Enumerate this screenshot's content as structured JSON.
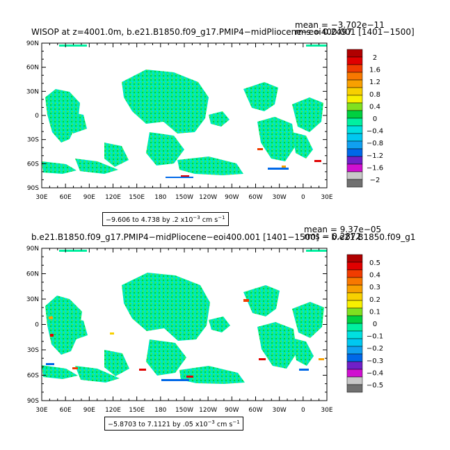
{
  "panels": [
    {
      "title_left": "WISOP  at z=4001.0m,  b.e21.B1850.f09_g17.PMIP4−midPliocene−eoi400.001  [1401−1500]",
      "stat_mean": "mean = −3.702e−11",
      "stat_rms": "rms = 0.2497",
      "range_label": "−9.606 to 4.738 by .2 x10",
      "range_exp": "−3",
      "range_unit": " cm s",
      "range_unit_exp": "−1",
      "colorbar_labels": [
        "2",
        "1.6",
        "1.2",
        "0.8",
        "0.4",
        "0",
        "−0.4",
        "−0.8",
        "−1.2",
        "−1.6",
        "−2"
      ],
      "colorbar_colors": [
        "#b00000",
        "#e00000",
        "#f03c00",
        "#f87800",
        "#f8a000",
        "#f8d000",
        "#f8f000",
        "#80e020",
        "#00d040",
        "#00f0a0",
        "#00e0e0",
        "#00c8f0",
        "#10a0f0",
        "#0068e8",
        "#7020c8",
        "#d010d0",
        "#c8c8c8",
        "#707070"
      ]
    },
    {
      "title_left": "b.e21.B1850.f09_g17.PMIP4−midPliocene−eoi400.001  [1401−1500]  −  b.e21.B1850.f09_g1",
      "stat_mean": "mean = 9.37e−05",
      "stat_rms": "rms = 0.2872",
      "range_label": "−5.8703 to 7.1121 by .05 x10",
      "range_exp": "−3",
      "range_unit": " cm s",
      "range_unit_exp": "−1",
      "colorbar_labels": [
        "0.5",
        "0.4",
        "0.3",
        "0.2",
        "0.1",
        "0",
        "−0.1",
        "−0.2",
        "−0.3",
        "−0.4",
        "−0.5"
      ],
      "colorbar_colors": [
        "#b00000",
        "#e00000",
        "#f03c00",
        "#f87800",
        "#f8a000",
        "#f8d000",
        "#f8f000",
        "#80e020",
        "#00d040",
        "#00f0a0",
        "#00e0e0",
        "#00c8f0",
        "#10a0f0",
        "#0068e8",
        "#7020c8",
        "#d010d0",
        "#c8c8c8",
        "#707070"
      ]
    }
  ],
  "chart_data": [
    {
      "type": "heatmap",
      "title": "WISOP  at z=4001.0m,  b.e21.B1850.f09_g17.PMIP4−midPliocene−eoi400.001  [1401−1500]",
      "x_tick_labels": [
        "30E",
        "60E",
        "90E",
        "120E",
        "150E",
        "180",
        "150W",
        "120W",
        "90W",
        "60W",
        "30W",
        "0",
        "30E"
      ],
      "y_tick_labels": [
        "90N",
        "60N",
        "30N",
        "0",
        "30S",
        "60S",
        "90S"
      ],
      "contour_levels": [
        2,
        1.6,
        1.2,
        0.8,
        0.4,
        0,
        -0.4,
        -0.8,
        -1.2,
        -1.6,
        -2
      ],
      "mean": -3.702e-11,
      "rms": 0.2497,
      "range": [
        -9.606,
        4.738
      ],
      "interval": 0.2,
      "scale": "x10^-3 cm s^-1"
    },
    {
      "type": "heatmap",
      "title": "b.e21.B1850.f09_g17.PMIP4−midPliocene−eoi400.001  [1401−1500]  −  b.e21.B1850.f09_g1",
      "x_tick_labels": [
        "30E",
        "60E",
        "90E",
        "120E",
        "150E",
        "180",
        "150W",
        "120W",
        "90W",
        "60W",
        "30W",
        "0",
        "30E"
      ],
      "y_tick_labels": [
        "90N",
        "60N",
        "30N",
        "0",
        "30S",
        "60S",
        "90S"
      ],
      "contour_levels": [
        0.5,
        0.4,
        0.3,
        0.2,
        0.1,
        0,
        -0.1,
        -0.2,
        -0.3,
        -0.4,
        -0.5
      ],
      "mean": 9.37e-05,
      "rms": 0.2872,
      "range": [
        -5.8703,
        7.1121
      ],
      "interval": 0.05,
      "scale": "x10^-3 cm s^-1"
    }
  ]
}
